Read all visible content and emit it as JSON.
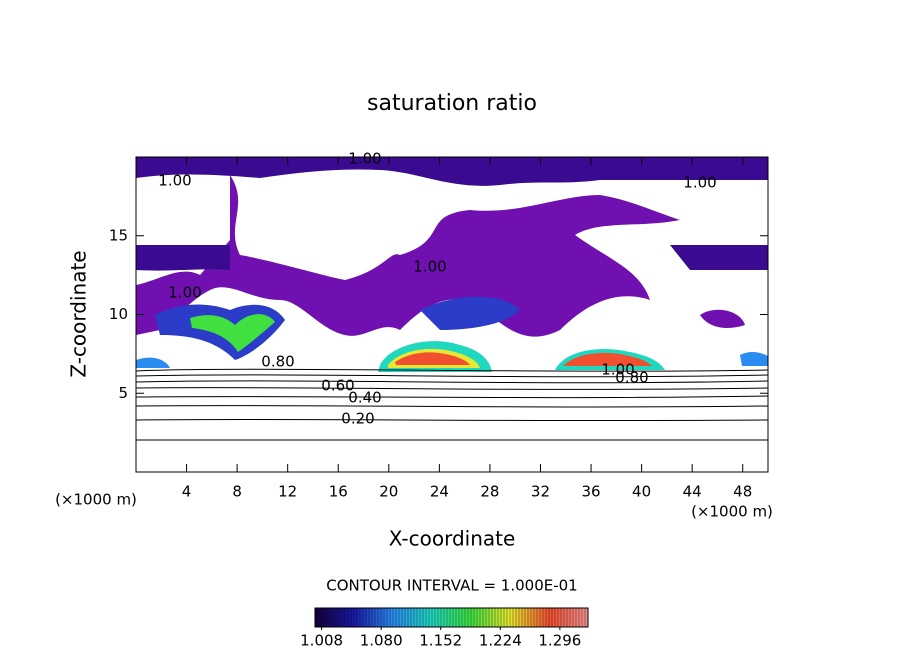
{
  "chart_data": {
    "type": "contour",
    "title": "saturation ratio",
    "x_label": "X-coordinate",
    "y_label": "Z-coordinate",
    "x_unit": "(×1000 m)",
    "xlim": [
      0,
      50
    ],
    "ylim": [
      0,
      20
    ],
    "xticks": [
      4,
      8,
      12,
      16,
      20,
      24,
      28,
      32,
      36,
      40,
      44,
      48
    ],
    "yticks": [
      5,
      10,
      15
    ],
    "contour_labels": [
      "1.00",
      "1.00",
      "1.00",
      "1.00",
      "1.00",
      "0.80",
      "0.60",
      "0.40",
      "0.20",
      "1.00",
      "0.80"
    ],
    "contour_interval": "CONTOUR INTERVAL = 1.000E-01",
    "colorbar_lim": [
      1.0,
      1.33
    ],
    "colorbar_ticks": [
      1.008,
      {
        "value": 1.08,
        "label": "1.080"
      },
      1.152,
      1.224,
      1.296
    ],
    "colors": [
      "#14003c",
      "#1a1aa8",
      "#2a8cf0",
      "#20d8c0",
      "#40e040",
      "#e8e830",
      "#f05030",
      "#f09090"
    ]
  }
}
